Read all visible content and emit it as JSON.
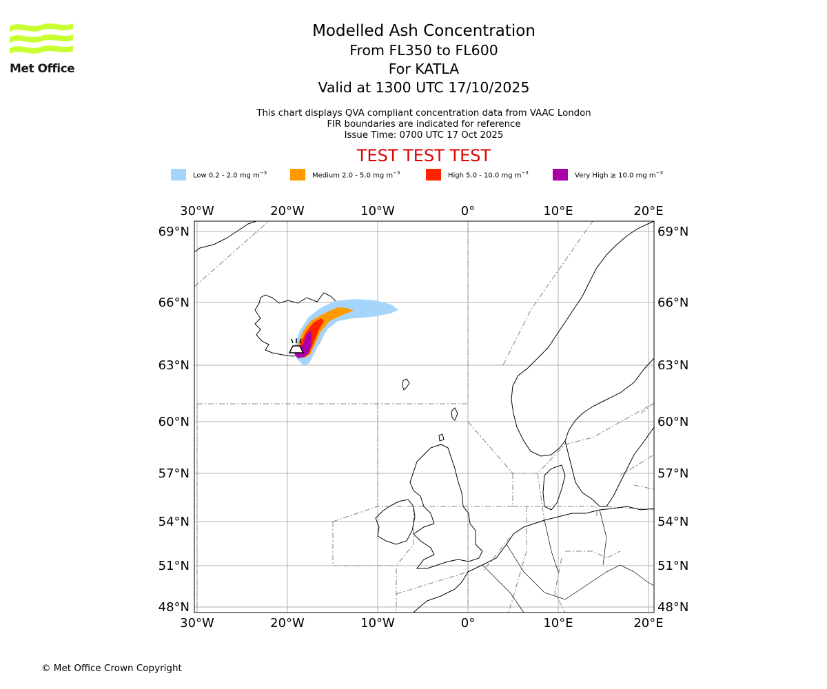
{
  "header": {
    "logo_text": "Met Office",
    "title": "Modelled Ash Concentration",
    "levels": "From FL350 to FL600",
    "volcano": "For KATLA",
    "valid": "Valid at 1300 UTC 17/10/2025",
    "desc1": "This chart displays QVA compliant concentration data from VAAC London",
    "desc2": "FIR boundaries are indicated for reference",
    "issue": "Issue Time: 0700 UTC 17 Oct 2025",
    "test": "TEST TEST TEST"
  },
  "legend": [
    {
      "name": "Low",
      "range": "Low 0.2 - 2.0 mg m",
      "color": "#a6d5fb"
    },
    {
      "name": "Medium",
      "range": "Medium 2.0 - 5.0 mg m",
      "color": "#ff9900"
    },
    {
      "name": "High",
      "range": "High 5.0 - 10.0 mg m",
      "color": "#ff2400"
    },
    {
      "name": "Very High",
      "range": "Very High ≥ 10.0 mg m",
      "color": "#aa00aa"
    }
  ],
  "legend_unit_exp": "−3",
  "map": {
    "lon_labels": [
      "30°W",
      "20°W",
      "10°W",
      "0°",
      "10°E",
      "20°E"
    ],
    "lat_labels": [
      "69°N",
      "66°N",
      "63°N",
      "60°N",
      "57°N",
      "54°N",
      "51°N",
      "48°N"
    ]
  },
  "footer": {
    "copyright": "© Met Office Crown Copyright"
  }
}
